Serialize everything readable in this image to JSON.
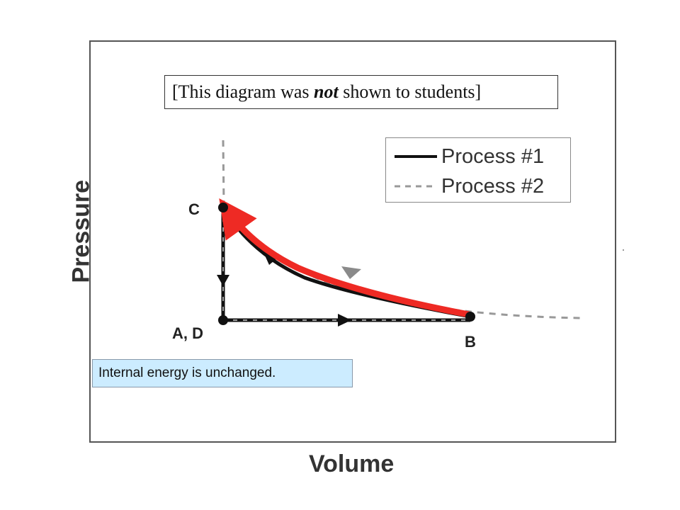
{
  "title_note": {
    "prefix": "[This diagram was ",
    "emphasis": "not",
    "suffix": " shown to students]"
  },
  "axes": {
    "x_label": "Volume",
    "y_label": "Pressure"
  },
  "points": {
    "c": "C",
    "ad": "A, D",
    "b": "B"
  },
  "legend": {
    "process1": "Process #1",
    "process2": "Process #2",
    "placement": "top-right"
  },
  "callout": {
    "text": "Internal energy is unchanged."
  },
  "colors": {
    "highlight": "#ee2a24",
    "callout_bg": "#ccecff",
    "process1": "#111111",
    "process2": "#999999"
  },
  "icons": [
    "arrowhead-icon"
  ]
}
